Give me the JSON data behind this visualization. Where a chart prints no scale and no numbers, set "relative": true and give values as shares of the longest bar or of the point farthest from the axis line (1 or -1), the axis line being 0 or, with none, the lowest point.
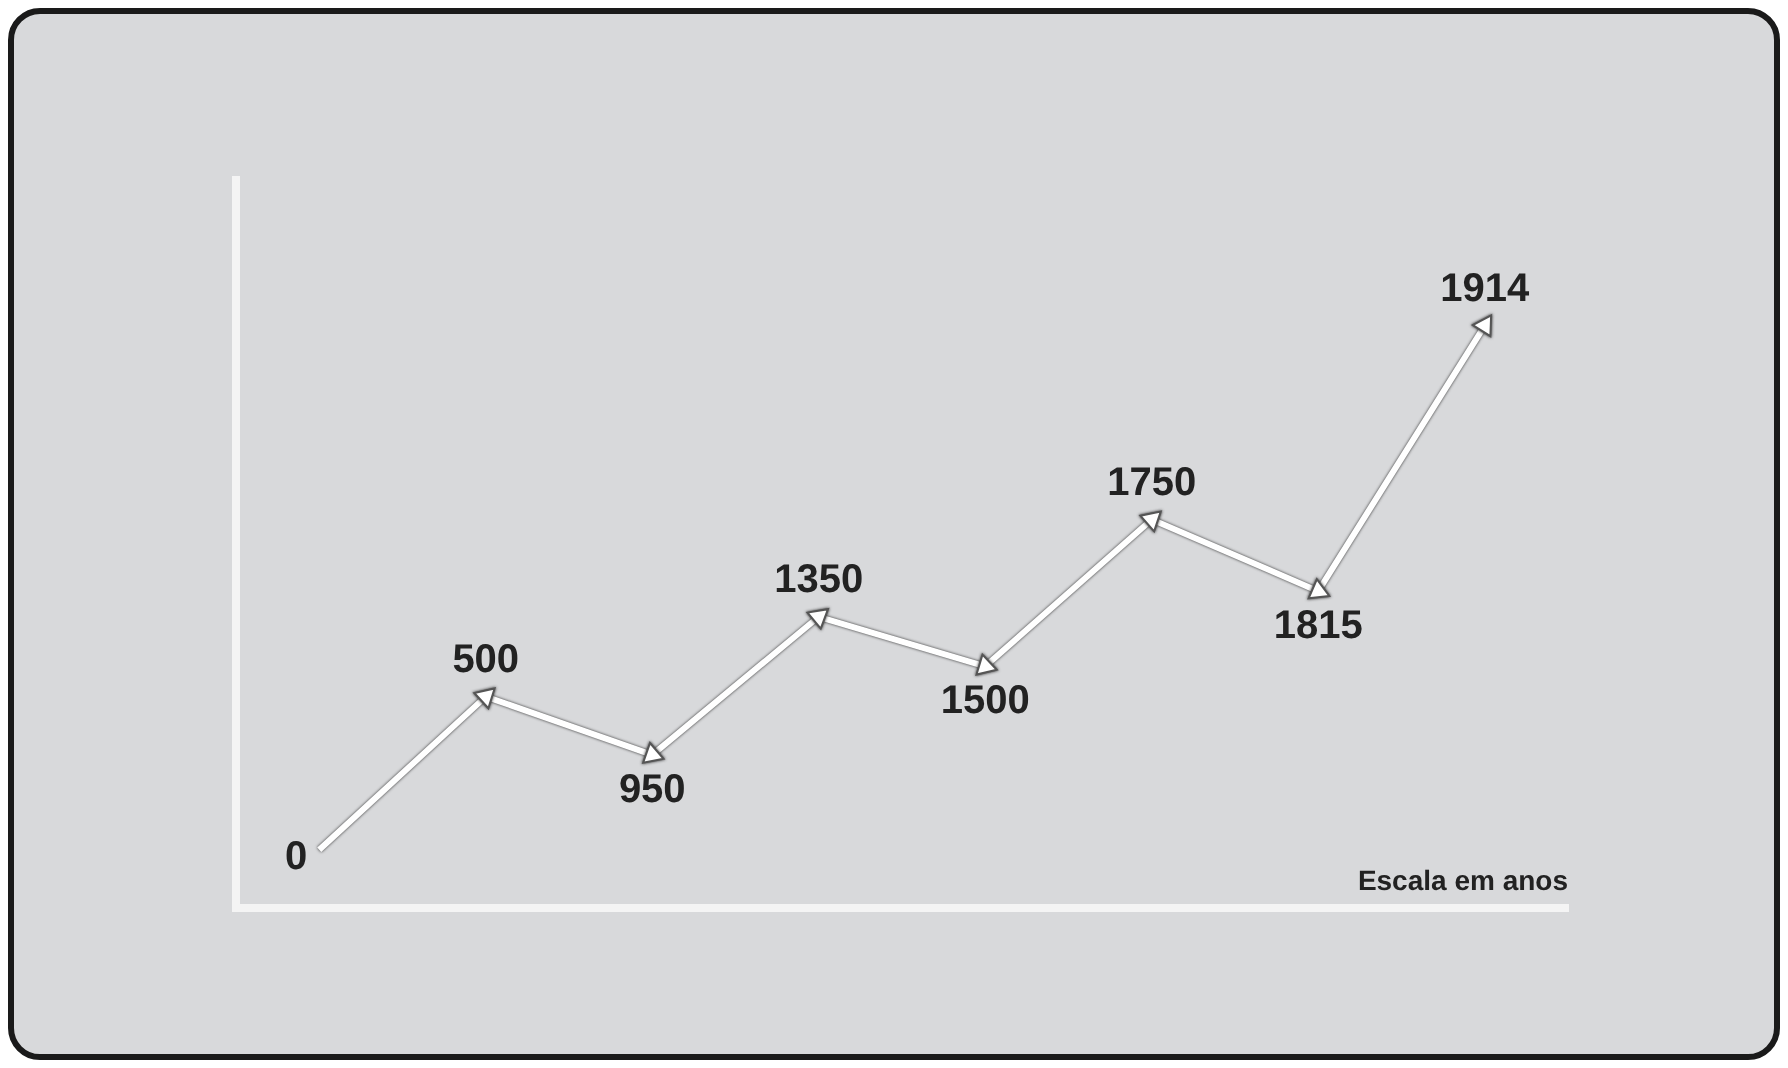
{
  "chart_data": {
    "type": "line",
    "relative": true,
    "xlabel": "Escala em anos",
    "categories": [
      "0",
      "500",
      "950",
      "1350",
      "1500",
      "1750",
      "1815",
      "1914"
    ],
    "series": [
      {
        "color": "#ffffff",
        "values": [
          0.1,
          0.363,
          0.263,
          0.5,
          0.415,
          0.667,
          0.544,
          1
        ]
      }
    ],
    "marker": "triangle",
    "line_style": "solid",
    "grid": false,
    "legend": false
  }
}
